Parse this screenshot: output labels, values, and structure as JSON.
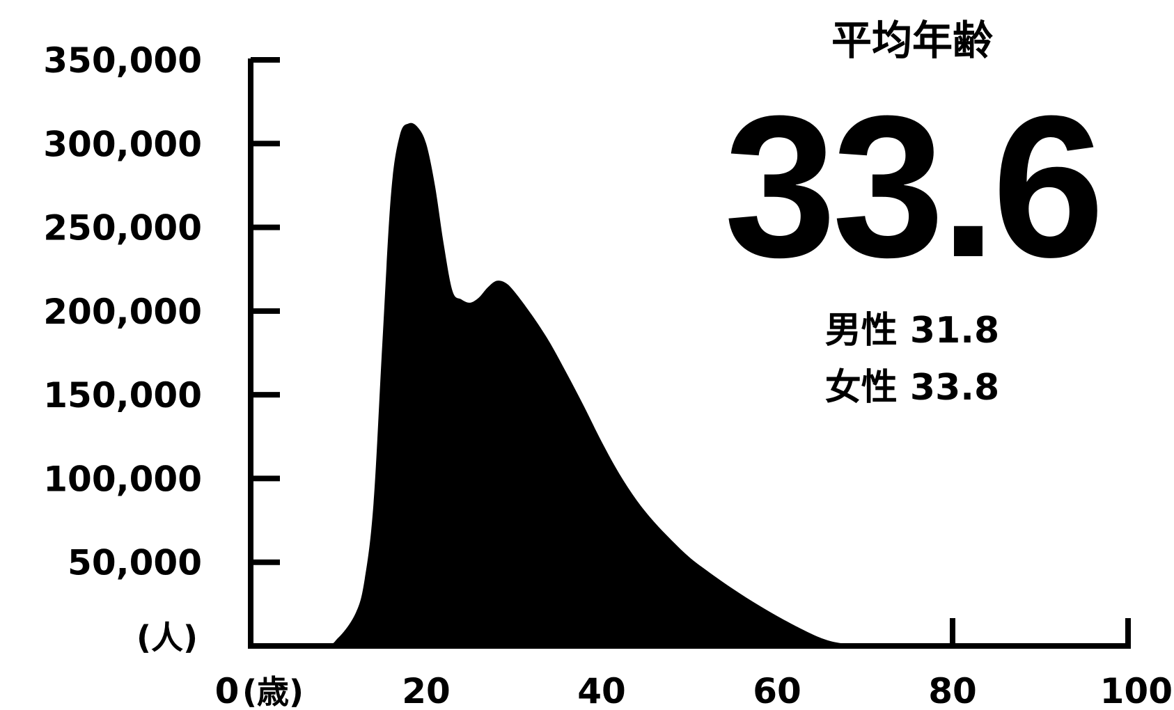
{
  "chart_data": {
    "type": "area",
    "color": "#000000",
    "xlim": [
      0,
      100
    ],
    "ylim": [
      0,
      350000
    ],
    "grid": false,
    "y_unit": "(人)",
    "x_unit": "(歳)",
    "x_ticks": [
      {
        "value": 0,
        "label": "0"
      },
      {
        "value": 20,
        "label": "20"
      },
      {
        "value": 40,
        "label": "40"
      },
      {
        "value": 60,
        "label": "60"
      },
      {
        "value": 80,
        "label": "80"
      },
      {
        "value": 100,
        "label": "100"
      }
    ],
    "y_ticks": [
      {
        "value": 50000,
        "label": "50,000"
      },
      {
        "value": 100000,
        "label": "100,000"
      },
      {
        "value": 150000,
        "label": "150,000"
      },
      {
        "value": 200000,
        "label": "200,000"
      },
      {
        "value": 250000,
        "label": "250,000"
      },
      {
        "value": 300000,
        "label": "300,000"
      },
      {
        "value": 350000,
        "label": "350,000"
      }
    ],
    "x": [
      0,
      8,
      10,
      12,
      13,
      14,
      15,
      16,
      17,
      18,
      19,
      20,
      21,
      22,
      23,
      24,
      25,
      26,
      27,
      28,
      29,
      30,
      32,
      34,
      36,
      38,
      40,
      42,
      44,
      46,
      48,
      50,
      52,
      55,
      58,
      61,
      64,
      66,
      68,
      69,
      70,
      80,
      100
    ],
    "values": [
      0,
      0,
      5000,
      20000,
      40000,
      85000,
      180000,
      270000,
      305000,
      312000,
      310000,
      300000,
      275000,
      240000,
      212000,
      207000,
      205000,
      208000,
      214000,
      218000,
      217000,
      212000,
      198000,
      182000,
      163000,
      143000,
      122000,
      103000,
      87000,
      74000,
      63000,
      53000,
      45000,
      34000,
      24000,
      15000,
      7000,
      3000,
      1000,
      0,
      0,
      0,
      0
    ]
  },
  "panel": {
    "title": "平均年齢",
    "value": "33.6",
    "male": "男性 31.8",
    "female": "女性 33.8"
  }
}
